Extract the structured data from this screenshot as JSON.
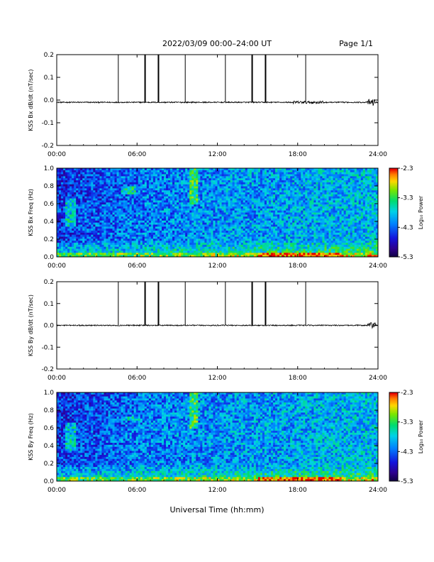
{
  "header": {
    "title": "2022/03/09  00:00–24:00 UT",
    "page": "Page 1/1"
  },
  "x_axis_title": "Universal Time (hh:mm)",
  "colorbar_label": "Log₁₀ Power",
  "chart_data": [
    {
      "type": "line",
      "panel": "bx_timeseries",
      "ylabel": "KSS Bx dB/dt (nT/sec)",
      "xlim_hours": [
        0,
        24
      ],
      "ylim": [
        -0.2,
        0.2
      ],
      "x_ticks": [
        "00:00",
        "06:00",
        "12:00",
        "18:00",
        "24:00"
      ],
      "y_ticks": [
        "0.2",
        "0.1",
        "0.0",
        "-0.1",
        "-0.2"
      ],
      "baseline": -0.01,
      "calibration_pulses_hours": [
        4.6,
        6.6,
        7.6,
        9.6,
        12.6,
        14.6,
        15.6,
        18.6
      ],
      "activity_hours": [
        [
          17.5,
          20.0
        ],
        [
          23.2,
          23.8
        ]
      ]
    },
    {
      "type": "heatmap",
      "panel": "bx_spectrogram",
      "ylabel": "KSS Bx Freq (Hz)",
      "xlim_hours": [
        0,
        24
      ],
      "ylim": [
        0.0,
        1.0
      ],
      "x_ticks": [
        "00:00",
        "06:00",
        "12:00",
        "18:00",
        "24:00"
      ],
      "y_ticks": [
        "1.0",
        "0.8",
        "0.6",
        "0.4",
        "0.2",
        "0.0"
      ],
      "colorbar_ticks": [
        "-2.3",
        "-3.3",
        "-4.3",
        "-5.3"
      ],
      "crange": [
        -5.3,
        -2.3
      ]
    },
    {
      "type": "line",
      "panel": "by_timeseries",
      "ylabel": "KSS By dB/dt (nT/sec)",
      "xlim_hours": [
        0,
        24
      ],
      "ylim": [
        -0.2,
        0.2
      ],
      "x_ticks": [
        "00:00",
        "06:00",
        "12:00",
        "18:00",
        "24:00"
      ],
      "y_ticks": [
        "0.2",
        "0.1",
        "0.0",
        "-0.1",
        "-0.2"
      ],
      "baseline": 0.0,
      "calibration_pulses_hours": [
        4.6,
        6.6,
        7.6,
        9.6,
        12.6,
        14.6,
        15.6,
        18.6
      ],
      "activity_hours": [
        [
          23.2,
          23.8
        ]
      ]
    },
    {
      "type": "heatmap",
      "panel": "by_spectrogram",
      "ylabel": "KSS By Freq (Hz)",
      "xlim_hours": [
        0,
        24
      ],
      "ylim": [
        0.0,
        1.0
      ],
      "x_ticks": [
        "00:00",
        "06:00",
        "12:00",
        "18:00",
        "24:00"
      ],
      "y_ticks": [
        "1.0",
        "0.8",
        "0.6",
        "0.4",
        "0.2",
        "0.0"
      ],
      "colorbar_ticks": [
        "-2.3",
        "-3.3",
        "-4.3",
        "-5.3"
      ],
      "crange": [
        -5.3,
        -2.3
      ]
    }
  ]
}
